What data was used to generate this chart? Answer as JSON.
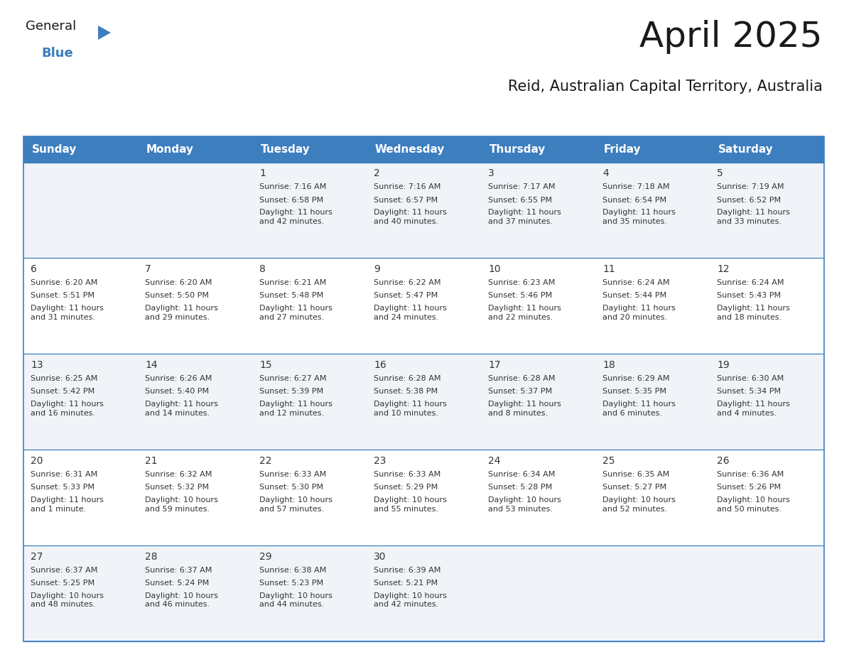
{
  "title": "April 2025",
  "subtitle": "Reid, Australian Capital Territory, Australia",
  "header_color": "#3d7ebf",
  "header_text_color": "#ffffff",
  "body_bg_color": "#ffffff",
  "alt_row_bg_color": "#f0f4f8",
  "cell_text_color": "#333333",
  "border_color": "#3d7ebf",
  "line_color": "#a0b8d0",
  "days_of_week": [
    "Sunday",
    "Monday",
    "Tuesday",
    "Wednesday",
    "Thursday",
    "Friday",
    "Saturday"
  ],
  "weeks": [
    [
      {
        "day": "",
        "sunrise": "",
        "sunset": "",
        "daylight": ""
      },
      {
        "day": "",
        "sunrise": "",
        "sunset": "",
        "daylight": ""
      },
      {
        "day": "1",
        "sunrise": "Sunrise: 7:16 AM",
        "sunset": "Sunset: 6:58 PM",
        "daylight": "Daylight: 11 hours\nand 42 minutes."
      },
      {
        "day": "2",
        "sunrise": "Sunrise: 7:16 AM",
        "sunset": "Sunset: 6:57 PM",
        "daylight": "Daylight: 11 hours\nand 40 minutes."
      },
      {
        "day": "3",
        "sunrise": "Sunrise: 7:17 AM",
        "sunset": "Sunset: 6:55 PM",
        "daylight": "Daylight: 11 hours\nand 37 minutes."
      },
      {
        "day": "4",
        "sunrise": "Sunrise: 7:18 AM",
        "sunset": "Sunset: 6:54 PM",
        "daylight": "Daylight: 11 hours\nand 35 minutes."
      },
      {
        "day": "5",
        "sunrise": "Sunrise: 7:19 AM",
        "sunset": "Sunset: 6:52 PM",
        "daylight": "Daylight: 11 hours\nand 33 minutes."
      }
    ],
    [
      {
        "day": "6",
        "sunrise": "Sunrise: 6:20 AM",
        "sunset": "Sunset: 5:51 PM",
        "daylight": "Daylight: 11 hours\nand 31 minutes."
      },
      {
        "day": "7",
        "sunrise": "Sunrise: 6:20 AM",
        "sunset": "Sunset: 5:50 PM",
        "daylight": "Daylight: 11 hours\nand 29 minutes."
      },
      {
        "day": "8",
        "sunrise": "Sunrise: 6:21 AM",
        "sunset": "Sunset: 5:48 PM",
        "daylight": "Daylight: 11 hours\nand 27 minutes."
      },
      {
        "day": "9",
        "sunrise": "Sunrise: 6:22 AM",
        "sunset": "Sunset: 5:47 PM",
        "daylight": "Daylight: 11 hours\nand 24 minutes."
      },
      {
        "day": "10",
        "sunrise": "Sunrise: 6:23 AM",
        "sunset": "Sunset: 5:46 PM",
        "daylight": "Daylight: 11 hours\nand 22 minutes."
      },
      {
        "day": "11",
        "sunrise": "Sunrise: 6:24 AM",
        "sunset": "Sunset: 5:44 PM",
        "daylight": "Daylight: 11 hours\nand 20 minutes."
      },
      {
        "day": "12",
        "sunrise": "Sunrise: 6:24 AM",
        "sunset": "Sunset: 5:43 PM",
        "daylight": "Daylight: 11 hours\nand 18 minutes."
      }
    ],
    [
      {
        "day": "13",
        "sunrise": "Sunrise: 6:25 AM",
        "sunset": "Sunset: 5:42 PM",
        "daylight": "Daylight: 11 hours\nand 16 minutes."
      },
      {
        "day": "14",
        "sunrise": "Sunrise: 6:26 AM",
        "sunset": "Sunset: 5:40 PM",
        "daylight": "Daylight: 11 hours\nand 14 minutes."
      },
      {
        "day": "15",
        "sunrise": "Sunrise: 6:27 AM",
        "sunset": "Sunset: 5:39 PM",
        "daylight": "Daylight: 11 hours\nand 12 minutes."
      },
      {
        "day": "16",
        "sunrise": "Sunrise: 6:28 AM",
        "sunset": "Sunset: 5:38 PM",
        "daylight": "Daylight: 11 hours\nand 10 minutes."
      },
      {
        "day": "17",
        "sunrise": "Sunrise: 6:28 AM",
        "sunset": "Sunset: 5:37 PM",
        "daylight": "Daylight: 11 hours\nand 8 minutes."
      },
      {
        "day": "18",
        "sunrise": "Sunrise: 6:29 AM",
        "sunset": "Sunset: 5:35 PM",
        "daylight": "Daylight: 11 hours\nand 6 minutes."
      },
      {
        "day": "19",
        "sunrise": "Sunrise: 6:30 AM",
        "sunset": "Sunset: 5:34 PM",
        "daylight": "Daylight: 11 hours\nand 4 minutes."
      }
    ],
    [
      {
        "day": "20",
        "sunrise": "Sunrise: 6:31 AM",
        "sunset": "Sunset: 5:33 PM",
        "daylight": "Daylight: 11 hours\nand 1 minute."
      },
      {
        "day": "21",
        "sunrise": "Sunrise: 6:32 AM",
        "sunset": "Sunset: 5:32 PM",
        "daylight": "Daylight: 10 hours\nand 59 minutes."
      },
      {
        "day": "22",
        "sunrise": "Sunrise: 6:33 AM",
        "sunset": "Sunset: 5:30 PM",
        "daylight": "Daylight: 10 hours\nand 57 minutes."
      },
      {
        "day": "23",
        "sunrise": "Sunrise: 6:33 AM",
        "sunset": "Sunset: 5:29 PM",
        "daylight": "Daylight: 10 hours\nand 55 minutes."
      },
      {
        "day": "24",
        "sunrise": "Sunrise: 6:34 AM",
        "sunset": "Sunset: 5:28 PM",
        "daylight": "Daylight: 10 hours\nand 53 minutes."
      },
      {
        "day": "25",
        "sunrise": "Sunrise: 6:35 AM",
        "sunset": "Sunset: 5:27 PM",
        "daylight": "Daylight: 10 hours\nand 52 minutes."
      },
      {
        "day": "26",
        "sunrise": "Sunrise: 6:36 AM",
        "sunset": "Sunset: 5:26 PM",
        "daylight": "Daylight: 10 hours\nand 50 minutes."
      }
    ],
    [
      {
        "day": "27",
        "sunrise": "Sunrise: 6:37 AM",
        "sunset": "Sunset: 5:25 PM",
        "daylight": "Daylight: 10 hours\nand 48 minutes."
      },
      {
        "day": "28",
        "sunrise": "Sunrise: 6:37 AM",
        "sunset": "Sunset: 5:24 PM",
        "daylight": "Daylight: 10 hours\nand 46 minutes."
      },
      {
        "day": "29",
        "sunrise": "Sunrise: 6:38 AM",
        "sunset": "Sunset: 5:23 PM",
        "daylight": "Daylight: 10 hours\nand 44 minutes."
      },
      {
        "day": "30",
        "sunrise": "Sunrise: 6:39 AM",
        "sunset": "Sunset: 5:21 PM",
        "daylight": "Daylight: 10 hours\nand 42 minutes."
      },
      {
        "day": "",
        "sunrise": "",
        "sunset": "",
        "daylight": ""
      },
      {
        "day": "",
        "sunrise": "",
        "sunset": "",
        "daylight": ""
      },
      {
        "day": "",
        "sunrise": "",
        "sunset": "",
        "daylight": ""
      }
    ]
  ],
  "logo_text_general": "General",
  "logo_text_blue": "Blue",
  "logo_triangle_color": "#3d7ebf",
  "title_fontsize": 36,
  "subtitle_fontsize": 15,
  "header_fontsize": 11,
  "day_num_fontsize": 10,
  "cell_text_fontsize": 8
}
